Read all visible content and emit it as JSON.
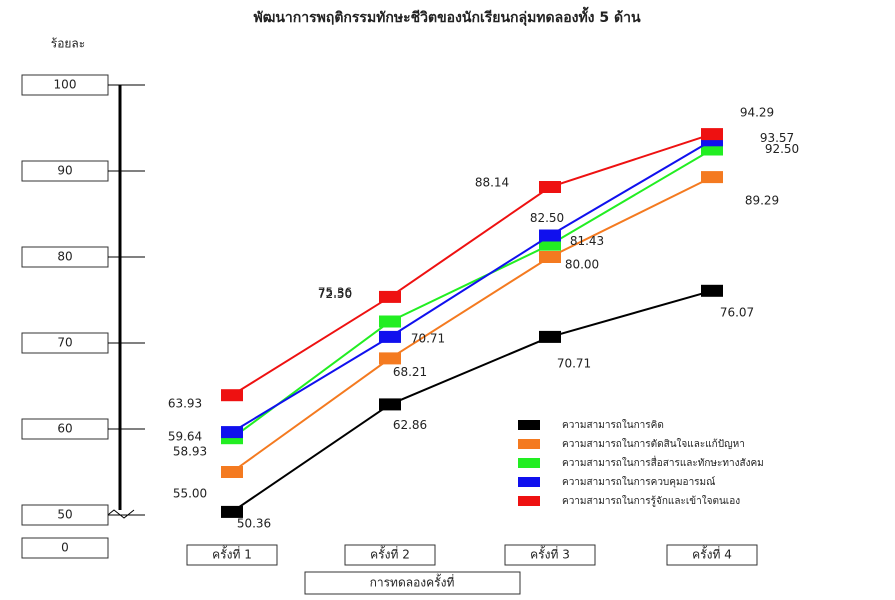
{
  "chart_data": {
    "type": "line",
    "title": "พัฒนาการพฤติกรรมทักษะชีวิตของนักเรียนกลุ่มทดลองทั้ง 5 ด้าน",
    "y_label": "ร้อยละ",
    "x_label": "การทดลองครั้งที่",
    "categories": [
      "ครั้งที่ 1",
      "ครั้งที่ 2",
      "ครั้งที่ 3",
      "ครั้งที่ 4"
    ],
    "ylim": [
      50,
      100
    ],
    "yticks": [
      0,
      50,
      60,
      70,
      80,
      90,
      100
    ],
    "axis_break": true,
    "legend": "lower right",
    "series": [
      {
        "name": "ความสามารถในการคิด",
        "color": "#000000",
        "values": [
          50.36,
          62.86,
          70.71,
          76.07
        ],
        "value_labels": [
          "50.36",
          "62.86",
          "70.71",
          "76.07"
        ]
      },
      {
        "name": "ความสามารถในการตัดสินใจและแก้ปัญหา",
        "color": "#f47a20",
        "values": [
          55.0,
          68.21,
          80.0,
          89.29
        ],
        "value_labels": [
          "55.00",
          "68.21",
          "80.00",
          "89.29"
        ]
      },
      {
        "name": "ความสามารถในการสื่อสารและทักษะทางสังคม",
        "color": "#22ee22",
        "values": [
          58.93,
          72.5,
          81.43,
          92.5
        ],
        "value_labels": [
          "58.93",
          "72.50",
          "81.43",
          "92.50"
        ]
      },
      {
        "name": "ความสามารถในการควบคุมอารมณ์",
        "color": "#1010ee",
        "values": [
          59.64,
          70.71,
          82.5,
          93.57
        ],
        "value_labels": [
          "59.64",
          "70.71",
          "82.50",
          "93.57"
        ]
      },
      {
        "name": "ความสามารถในการรู้จักและเข้าใจตนเอง",
        "color": "#ee1111",
        "values": [
          63.93,
          75.36,
          88.14,
          94.29
        ],
        "value_labels": [
          "63.93",
          "75.36",
          "88.14",
          "94.29"
        ]
      }
    ]
  }
}
